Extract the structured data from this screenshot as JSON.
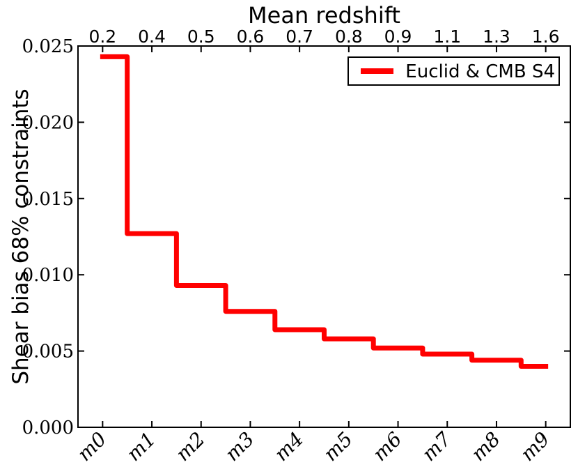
{
  "colors": {
    "series": "#ff0000",
    "axis": "#000000",
    "background": "#ffffff",
    "legend_border": "#000000"
  },
  "legend": {
    "label": "Euclid & CMB S4",
    "line_color": "#ff0000",
    "position": "upper right"
  },
  "chart_data": {
    "type": "line",
    "line_style": "steps-mid",
    "title": "Mean redshift",
    "xlabel": "",
    "ylabel": "Shear bias 68% constraints",
    "categories": [
      "m0",
      "m1",
      "m2",
      "m3",
      "m4",
      "m5",
      "m6",
      "m7",
      "m8",
      "m9"
    ],
    "top_axis_label": "Mean redshift",
    "top_axis_tick_labels": [
      "0.2",
      "0.4",
      "0.5",
      "0.6",
      "0.7",
      "0.8",
      "0.9",
      "1.1",
      "1.3",
      "1.6"
    ],
    "mean_redshift_per_bin": [
      0.2,
      0.4,
      0.5,
      0.6,
      0.7,
      0.8,
      0.9,
      1.1,
      1.3,
      1.6
    ],
    "series": [
      {
        "name": "Euclid & CMB S4",
        "color": "#ff0000",
        "values": [
          0.0243,
          0.0127,
          0.0093,
          0.0076,
          0.0064,
          0.0058,
          0.0052,
          0.0048,
          0.0044,
          0.004
        ]
      }
    ],
    "ylim": [
      0.0,
      0.025
    ],
    "yticks": [
      0.0,
      0.005,
      0.01,
      0.015,
      0.02,
      0.025
    ],
    "ytick_labels": [
      "0.000",
      "0.005",
      "0.010",
      "0.015",
      "0.020",
      "0.025"
    ],
    "grid": false,
    "legend_position": "upper right"
  }
}
